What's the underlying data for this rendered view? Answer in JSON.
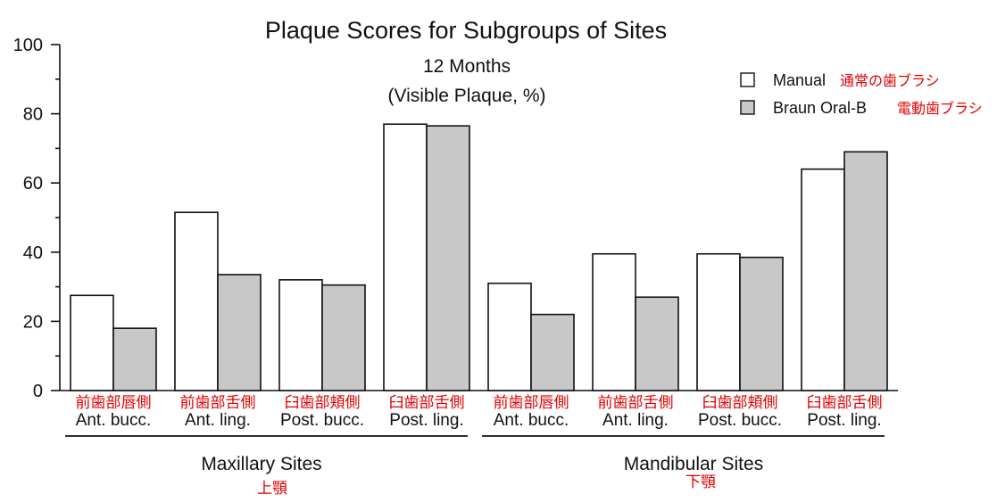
{
  "chart_data": {
    "type": "bar",
    "title": "Plaque Scores for Subgroups of Sites",
    "subtitle_lines": [
      "12 Months",
      "(Visible Plaque, %)"
    ],
    "ylim": [
      0,
      100
    ],
    "yticks": [
      "0",
      "20",
      "40",
      "60",
      "80",
      "100"
    ],
    "categories": [
      "Ant. bucc.",
      "Ant. ling.",
      "Post. bucc.",
      "Post. ling.",
      "Ant. bucc.",
      "Ant. ling.",
      "Post. bucc.",
      "Post. ling."
    ],
    "categories_ja": [
      "前歯部唇側",
      "前歯部舌側",
      "臼歯部頬側",
      "臼歯部舌側",
      "前歯部唇側",
      "前歯部舌側",
      "臼歯部頬側",
      "臼歯部舌側"
    ],
    "groups": [
      {
        "label": "Maxillary Sites",
        "label_ja": "上顎"
      },
      {
        "label": "Mandibular Sites",
        "label_ja": "下顎"
      }
    ],
    "series": [
      {
        "name": "Manual",
        "name_ja": "通常の歯ブラシ",
        "color": "#ffffff",
        "values": [
          27.5,
          51.5,
          32,
          77,
          31,
          39.5,
          39.5,
          64
        ]
      },
      {
        "name": "Braun Oral-B",
        "name_ja": "電動歯ブラシ",
        "color": "#c8c8c8",
        "values": [
          18,
          33.5,
          30.5,
          76.5,
          22,
          27,
          38.5,
          69
        ]
      }
    ],
    "legend_position": "top-right",
    "grid": false
  }
}
